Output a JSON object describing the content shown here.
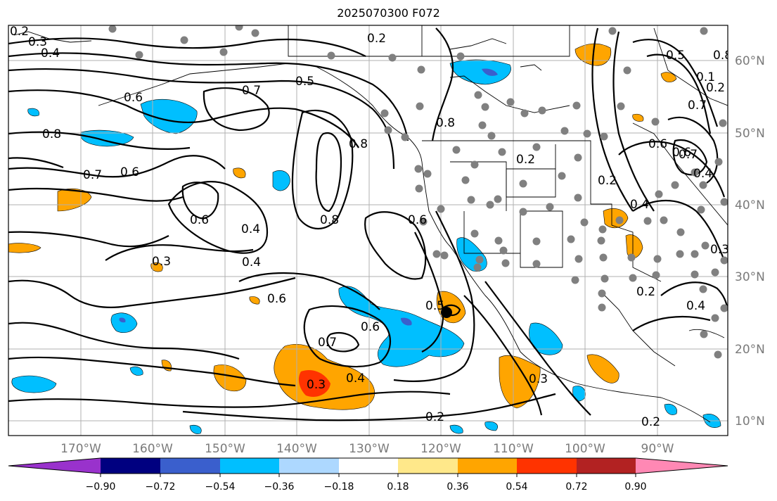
{
  "title": "2025070300 F072",
  "map": {
    "type": "weather-forecast-map",
    "lon_labels": [
      "170°W",
      "160°W",
      "150°W",
      "140°W",
      "130°W",
      "120°W",
      "110°W",
      "100°W",
      "90°W"
    ],
    "lat_labels": [
      "60°N",
      "50°N",
      "40°N",
      "30°N",
      "20°N",
      "10°N"
    ],
    "contour_labels": [
      "0.2",
      "0.3",
      "0.4",
      "0.6",
      "0.5",
      "0.8",
      "0.7",
      "0.6",
      "0.8",
      "0.7",
      "0.6",
      "0.6",
      "0.4",
      "0.8",
      "0.4",
      "0.3",
      "0.6",
      "0.6",
      "0.7",
      "0.5",
      "0.3",
      "0.4",
      "0.2",
      "0.3",
      "0.2",
      "0.2",
      "0.5",
      "0.8",
      "0.6",
      "0.2",
      "0.4",
      "0.3",
      "0.4",
      "0.2",
      "0.4",
      "0.6",
      "0.2",
      "0.7",
      "0.2",
      "0.1",
      "0.8",
      "0.7"
    ],
    "colors": {
      "negative": [
        "#9932cc",
        "#000080",
        "#3a5fcd",
        "#00bfff",
        "#add8ff"
      ],
      "neutral": "#ffffff",
      "positive": [
        "#ffe88a",
        "#ffa500",
        "#ff3300",
        "#b22222",
        "#ff88b4"
      ],
      "stations": "#808080",
      "grid": "#b0b0b0"
    }
  },
  "colorbar": {
    "ticks": [
      "−0.90",
      "−0.72",
      "−0.54",
      "−0.36",
      "−0.18",
      "0.18",
      "0.36",
      "0.54",
      "0.72",
      "0.90"
    ]
  }
}
